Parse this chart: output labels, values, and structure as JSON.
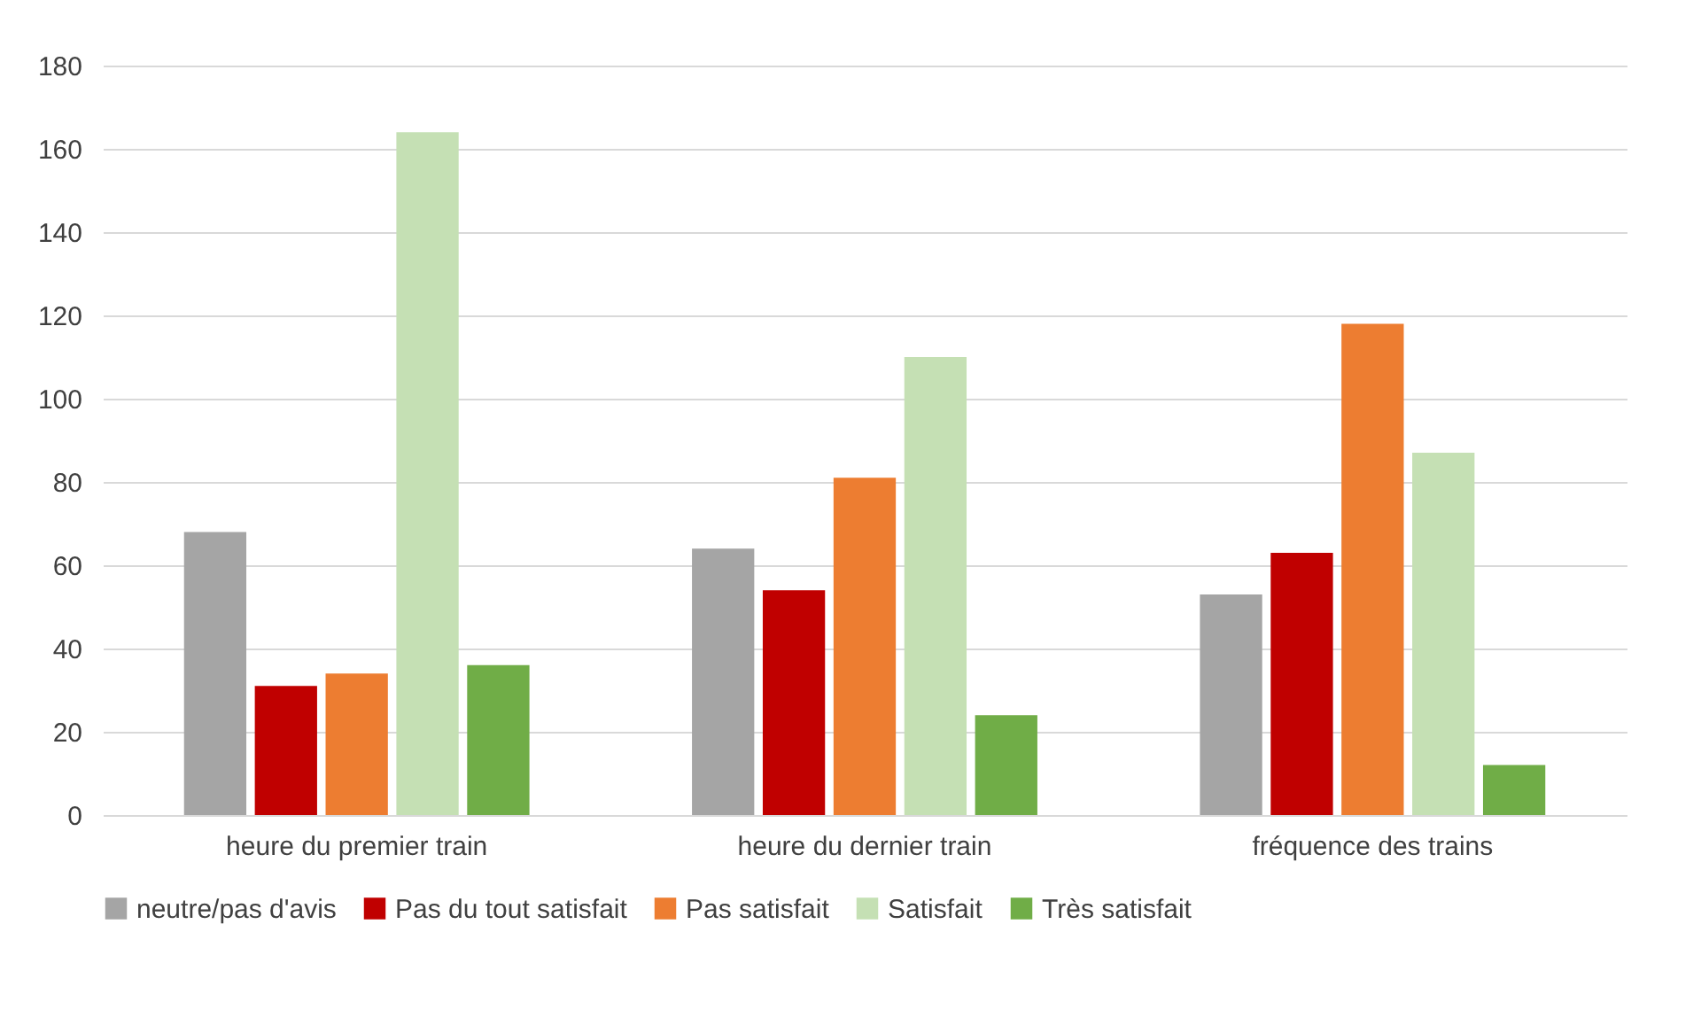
{
  "chart_data": {
    "type": "bar",
    "categories": [
      "heure du premier train",
      "heure du dernier train",
      "fréquence des trains"
    ],
    "series": [
      {
        "name": "neutre/pas d'avis",
        "color": "#a5a5a5",
        "values": [
          68,
          64,
          53
        ]
      },
      {
        "name": "Pas du tout satisfait",
        "color": "#c00000",
        "values": [
          31,
          54,
          63
        ]
      },
      {
        "name": "Pas satisfait",
        "color": "#ed7d31",
        "values": [
          34,
          81,
          118
        ]
      },
      {
        "name": "Satisfait",
        "color": "#c5e0b4",
        "values": [
          164,
          110,
          87
        ]
      },
      {
        "name": "Très satisfait",
        "color": "#70ad47",
        "values": [
          36,
          24,
          12
        ]
      }
    ],
    "ylim": [
      0,
      180
    ],
    "yticks": [
      0,
      20,
      40,
      60,
      80,
      100,
      120,
      140,
      160,
      180
    ],
    "grid": "y",
    "legend": "bottom"
  }
}
